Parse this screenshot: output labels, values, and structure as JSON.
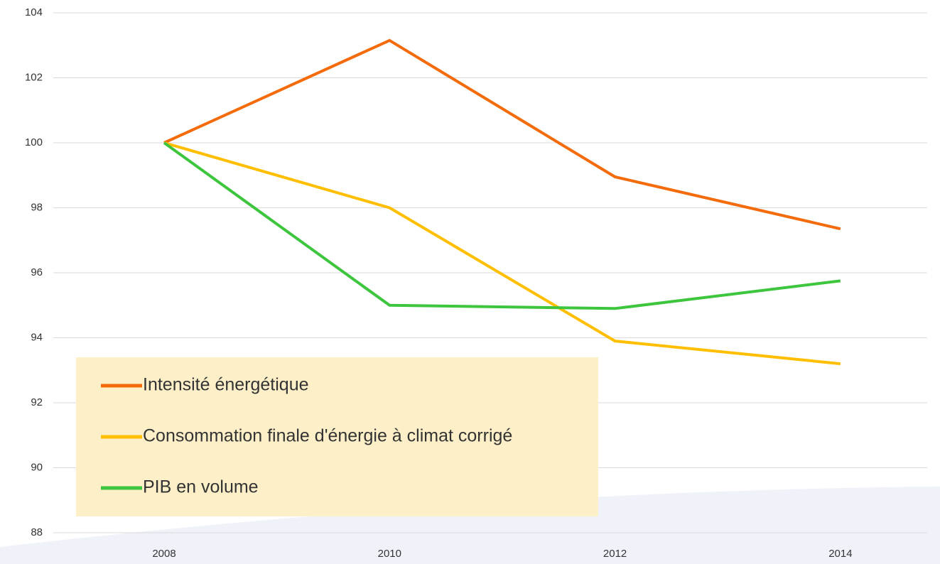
{
  "chart_data": {
    "type": "line",
    "categories": [
      "2008",
      "2010",
      "2012",
      "2014"
    ],
    "series": [
      {
        "name": "Intensité énergétique",
        "color": "#f46b0c",
        "values": [
          100,
          103.15,
          98.95,
          97.35
        ]
      },
      {
        "name": "Consommation finale d'énergie à climat corrigé",
        "color": "#ffbf00",
        "values": [
          100,
          98.0,
          93.9,
          93.2
        ]
      },
      {
        "name": "PIB en volume",
        "color": "#3dc63d",
        "values": [
          100,
          95.0,
          94.9,
          95.75
        ]
      }
    ],
    "ylim": [
      88,
      104
    ],
    "yticks": [
      88,
      90,
      92,
      94,
      96,
      98,
      100,
      102,
      104
    ],
    "grid": true,
    "legend": "bottom-left"
  }
}
